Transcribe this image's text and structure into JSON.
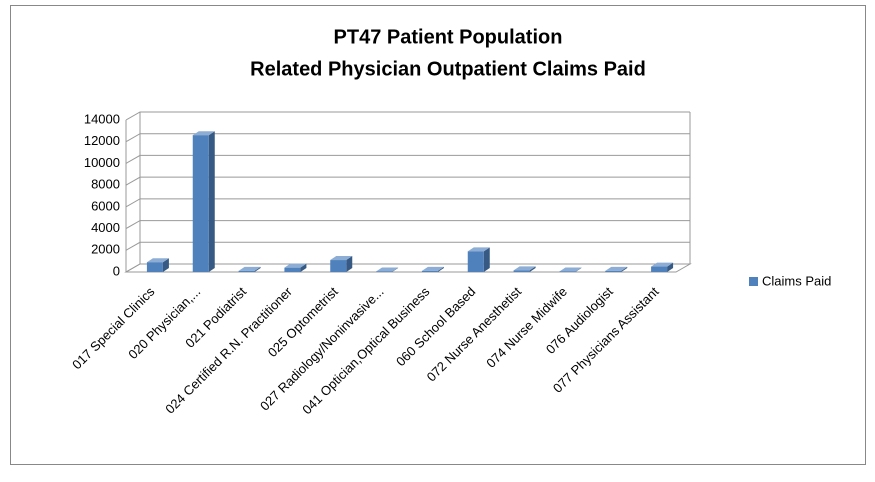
{
  "chart_data": {
    "type": "bar",
    "title": "PT47 Patient Population",
    "subtitle": "Related Physician Outpatient Claims Paid",
    "categories": [
      "017 Special Clinics",
      "020 Physician,...",
      "021 Podiatrist",
      "024 Certified R.N. Practitioner",
      "025 Optometrist",
      "027 Radiology/Noninvasive...",
      "041 Optician,Optical Business",
      "060 School Based",
      "072 Nurse Anesthetist",
      "074 Nurse Midwife",
      "076 Audiologist",
      "077 Physicians Assistant"
    ],
    "series": [
      {
        "name": "Claims Paid",
        "color": "#4f81bd",
        "values": [
          900,
          12600,
          100,
          400,
          1100,
          50,
          100,
          1900,
          150,
          50,
          100,
          500
        ]
      }
    ],
    "ylim": [
      0,
      14000
    ],
    "yticks": [
      0,
      2000,
      4000,
      6000,
      8000,
      10000,
      12000,
      14000
    ],
    "grid": true,
    "legend": "right"
  }
}
